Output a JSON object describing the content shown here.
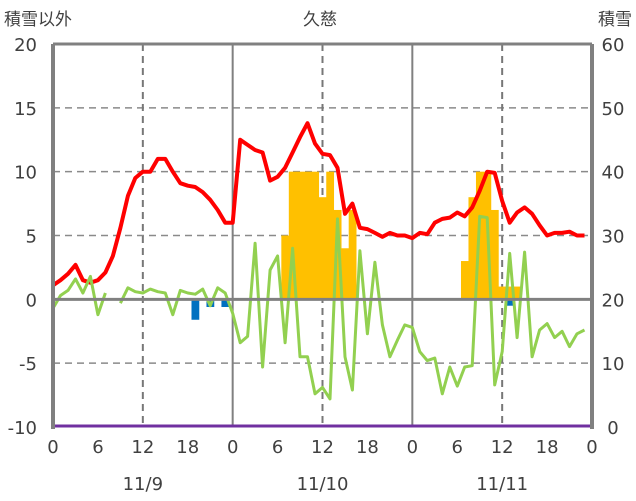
{
  "chart_data": {
    "type": "line",
    "title": "久慈",
    "ylabel_left": "積雪以外",
    "ylabel_right": "積雪",
    "ylim_left": [
      -10,
      20
    ],
    "ylim_right": [
      0,
      60
    ],
    "yticks_left": [
      "20",
      "15",
      "10",
      "5",
      "0",
      "-5",
      "-10"
    ],
    "yticks_right": [
      "60",
      "50",
      "40",
      "30",
      "20",
      "10",
      "0"
    ],
    "xlim_hours": [
      0,
      72
    ],
    "xtick_labels": [
      "0",
      "6",
      "12",
      "18",
      "0",
      "6",
      "12",
      "18",
      "0",
      "6",
      "12",
      "18",
      "0"
    ],
    "date_labels": [
      "11/9",
      "11/10",
      "11/11"
    ],
    "grid": true,
    "colors": {
      "temperature": "#ff0000",
      "diff": "#92d050",
      "snow": "#ffc000",
      "snow_neg": "#0070c0",
      "base": "#7030a0",
      "axis": "#808080"
    },
    "series": [
      {
        "name": "temperature",
        "axis": "left",
        "type": "line",
        "values": [
          1.1,
          1.5,
          2.0,
          2.7,
          1.5,
          1.3,
          1.5,
          2.1,
          3.4,
          5.6,
          8.1,
          9.5,
          10,
          10,
          11,
          11,
          10,
          9.1,
          8.9,
          8.8,
          8.4,
          7.8,
          7,
          6,
          6,
          12.5,
          12.1,
          11.7,
          11.5,
          9.3,
          9.6,
          10.3,
          11.5,
          12.7,
          13.8,
          12.2,
          11.4,
          11.3,
          10.3,
          6.7,
          7.5,
          5.6,
          5.5,
          5.2,
          4.9,
          5.2,
          5.0,
          5.0,
          4.8,
          5.2,
          5.1,
          6.0,
          6.3,
          6.4,
          6.8,
          6.5,
          7.2,
          8.5,
          10,
          9.9,
          7.7,
          6.0,
          6.8,
          7.2,
          6.7,
          5.8,
          5.0,
          5.2,
          5.2,
          5.3,
          5.0,
          5.0
        ]
      },
      {
        "name": "diff",
        "axis": "left",
        "type": "line",
        "values": [
          -0.7,
          0.3,
          0.7,
          1.6,
          0.5,
          1.8,
          -1.2,
          0.5,
          null,
          -0.3,
          0.9,
          0.6,
          0.5,
          0.8,
          0.6,
          0.5,
          -1.2,
          0.7,
          0.5,
          0.4,
          0.8,
          -0.5,
          0.9,
          0.5,
          -1.1,
          -3.4,
          -2.9,
          4.4,
          -5.3,
          2.3,
          3.4,
          -3.4,
          4.0,
          -4.5,
          -4.5,
          -7.4,
          -6.9,
          -7.8,
          6.3,
          -4.5,
          -7.1,
          3.8,
          -2.7,
          2.9,
          -2.0,
          -4.5,
          -3.2,
          -2.0,
          -2.2,
          -4.1,
          -4.8,
          -4.6,
          -7.4,
          -5.3,
          -6.8,
          -5.3,
          -5.2,
          6.5,
          6.4,
          -6.7,
          -4.1,
          3.6,
          -3.0,
          3.7,
          -4.5,
          -2.4,
          -1.9,
          -3.0,
          -2.5,
          -3.7,
          -2.7,
          -2.4
        ]
      },
      {
        "name": "snow",
        "axis": "right",
        "type": "bar",
        "baseline": 20,
        "points": [
          [
            31,
            30
          ],
          [
            32,
            40
          ],
          [
            33,
            40
          ],
          [
            34,
            40
          ],
          [
            35,
            40
          ],
          [
            36,
            36
          ],
          [
            37,
            40
          ],
          [
            38,
            34
          ],
          [
            39,
            28
          ],
          [
            40,
            34
          ],
          [
            55,
            26
          ],
          [
            56,
            36
          ],
          [
            57,
            40
          ],
          [
            58,
            40
          ],
          [
            59,
            34
          ],
          [
            60,
            22
          ],
          [
            61,
            22
          ],
          [
            62,
            22
          ]
        ]
      },
      {
        "name": "snow_neg",
        "axis": "left",
        "type": "bar",
        "baseline": 0,
        "points": [
          [
            19,
            -1.6
          ],
          [
            21,
            -0.6
          ],
          [
            23,
            -0.6
          ],
          [
            61,
            -0.5
          ]
        ]
      },
      {
        "name": "base",
        "axis": "right",
        "type": "line",
        "constant": 0
      }
    ]
  }
}
